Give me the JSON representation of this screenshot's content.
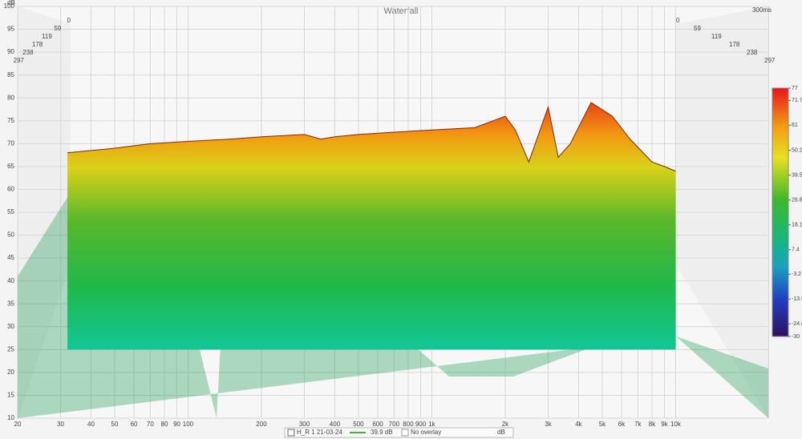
{
  "chart_data": {
    "type": "waterfall",
    "title": "Waterfall",
    "y_label": "dB",
    "time_unit_label": "300ms",
    "xlim": [
      20,
      24000
    ],
    "ylim": [
      10,
      100
    ],
    "xticks": [
      20,
      30,
      40,
      50,
      60,
      70,
      80,
      90,
      100,
      200,
      300,
      400,
      500,
      600,
      700,
      800,
      900,
      {
        "value": 1000,
        "label": "1k"
      },
      {
        "value": 2000,
        "label": "2k"
      },
      {
        "value": 3000,
        "label": "3k"
      },
      {
        "value": 4000,
        "label": "4k"
      },
      {
        "value": 5000,
        "label": "5k"
      },
      {
        "value": 6000,
        "label": "6k"
      },
      {
        "value": 7000,
        "label": "7k"
      },
      {
        "value": 8000,
        "label": "8k"
      },
      {
        "value": 9000,
        "label": "9k"
      },
      {
        "value": 10000,
        "label": "10k"
      }
    ],
    "yticks": [
      10,
      15,
      20,
      25,
      30,
      35,
      40,
      45,
      50,
      55,
      60,
      65,
      70,
      75,
      80,
      85,
      90,
      95,
      100
    ],
    "time_ticks": [
      0,
      59,
      119,
      178,
      238,
      297
    ],
    "colorbar_lim": [
      -30,
      77
    ],
    "colorbar_ticks": [
      77,
      71.7,
      61.0,
      50.2,
      39.5,
      28.8,
      18.1,
      7.4,
      -3.2,
      -13.9,
      -24.6,
      -30
    ],
    "x": [
      32,
      40,
      50,
      70,
      100,
      150,
      200,
      300,
      350,
      400,
      500,
      700,
      1000,
      1500,
      2000,
      2200,
      2500,
      3000,
      3300,
      3700,
      4500,
      5500,
      6500,
      8000,
      9000,
      10000
    ],
    "values": [
      68,
      68.5,
      69,
      70,
      70.5,
      71,
      71.5,
      72,
      71,
      71.5,
      72,
      72.5,
      73,
      73.5,
      76,
      73,
      66,
      78,
      67,
      70,
      79,
      76,
      71,
      66,
      65,
      64
    ],
    "legend": {
      "measurement": "H_R 1 21-03-24",
      "level": "39.9 dB",
      "overlay": "No overlay",
      "unit": "dB"
    },
    "grid": true
  }
}
